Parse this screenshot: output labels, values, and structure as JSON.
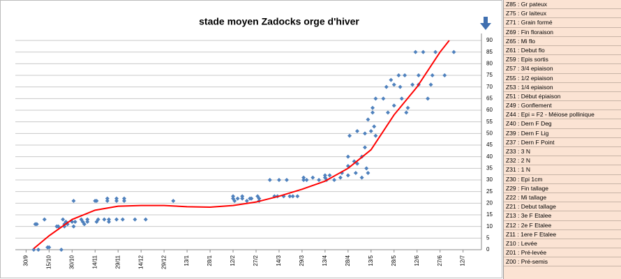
{
  "chart_data": {
    "type": "scatter",
    "title": "stade moyen Zadocks orge d'hiver",
    "x": [
      5,
      8,
      7,
      6,
      12,
      14,
      15,
      20,
      21,
      23,
      24,
      25,
      25,
      26,
      27,
      30,
      31,
      31,
      32,
      36,
      37,
      38,
      40,
      40,
      45,
      46,
      46,
      47,
      51,
      53,
      53,
      54,
      54,
      59,
      59,
      59,
      63,
      64,
      64,
      71,
      78,
      96,
      135,
      135,
      136,
      138,
      141,
      141,
      144,
      146,
      147,
      151,
      152,
      152,
      159,
      162,
      164,
      165,
      168,
      170,
      172,
      174,
      177,
      181,
      181,
      183,
      187,
      191,
      195,
      195,
      196,
      198,
      201,
      205,
      206,
      210,
      210,
      210,
      211,
      214,
      215,
      216,
      216,
      219,
      219,
      221,
      221,
      222,
      223,
      223,
      225,
      226,
      226,
      227,
      228,
      228,
      233,
      235,
      236,
      238,
      240,
      240,
      243,
      244,
      245,
      247,
      248,
      249,
      252,
      254,
      256,
      256,
      259,
      262,
      264,
      265,
      267,
      273,
      279
    ],
    "values": [
      0,
      0,
      11,
      11,
      13,
      1,
      1,
      10,
      10,
      0,
      13,
      11,
      10,
      12,
      11,
      12,
      10,
      21,
      12,
      13,
      12,
      11,
      12,
      13,
      21,
      21,
      12,
      13,
      13,
      21,
      22,
      12,
      13,
      22,
      21,
      13,
      13,
      22,
      21,
      13,
      13,
      21,
      23,
      22,
      21,
      22,
      23,
      22,
      21,
      22,
      22,
      23,
      21,
      22,
      30,
      23,
      23,
      30,
      23,
      30,
      23,
      23,
      23,
      30,
      31,
      30,
      31,
      30,
      31,
      32,
      30,
      32,
      30,
      31,
      33,
      32,
      36,
      40,
      49,
      38,
      33,
      51,
      37,
      40,
      31,
      50,
      44,
      35,
      33,
      56,
      51,
      59,
      61,
      53,
      65,
      49,
      65,
      70,
      59,
      73,
      71,
      62,
      75,
      70,
      65,
      75,
      59,
      61,
      71,
      85,
      75,
      71,
      85,
      65,
      71,
      75,
      85,
      75,
      85
    ],
    "color": "#4f81bd",
    "trend": {
      "type": "line",
      "color": "#ff0000",
      "x": [
        5,
        15,
        30,
        45,
        60,
        75,
        90,
        105,
        120,
        135,
        150,
        165,
        180,
        195,
        210,
        225,
        240,
        255,
        270,
        276
      ],
      "values": [
        0.5,
        6,
        13,
        17,
        18.7,
        19,
        19,
        18.5,
        18.3,
        19,
        20.5,
        23,
        26,
        29.5,
        35,
        43,
        58,
        70,
        85,
        90
      ]
    },
    "xlim": [
      -7,
      297
    ],
    "xticks": [
      {
        "value": 0,
        "label": "30/9"
      },
      {
        "value": 15,
        "label": "15/10"
      },
      {
        "value": 30,
        "label": "30/10"
      },
      {
        "value": 45,
        "label": "14/11"
      },
      {
        "value": 60,
        "label": "29/11"
      },
      {
        "value": 75,
        "label": "14/12"
      },
      {
        "value": 90,
        "label": "29/12"
      },
      {
        "value": 105,
        "label": "13/1"
      },
      {
        "value": 120,
        "label": "28/1"
      },
      {
        "value": 135,
        "label": "12/2"
      },
      {
        "value": 150,
        "label": "27/2"
      },
      {
        "value": 165,
        "label": "14/3"
      },
      {
        "value": 180,
        "label": "29/3"
      },
      {
        "value": 195,
        "label": "13/4"
      },
      {
        "value": 210,
        "label": "28/4"
      },
      {
        "value": 225,
        "label": "13/5"
      },
      {
        "value": 240,
        "label": "28/5"
      },
      {
        "value": 255,
        "label": "12/6"
      },
      {
        "value": 270,
        "label": "27/6"
      },
      {
        "value": 285,
        "label": "12/7"
      }
    ],
    "ylim": [
      0,
      90
    ],
    "yticks": [
      0,
      5,
      10,
      15,
      20,
      25,
      30,
      35,
      40,
      45,
      50,
      55,
      60,
      65,
      70,
      75,
      80,
      85,
      90
    ],
    "grid": true,
    "stages": [
      "Z85 : Gr pateux",
      "Z75 : Gr laiteux",
      "Z71 : Grain formé",
      "Z69 : Fin floraison",
      "Z65 : Mi flo",
      "Z61 : Debut flo",
      "Z59 : Epis sortis",
      "Z57 : 3/4 epiaison",
      "Z55 : 1/2 epiaison",
      "Z53 : 1/4 epiaison",
      "Z51 : Début épiaison",
      "Z49 : Gonflement",
      "Z44 : Epi = F2 - Méiose pollinique",
      "Z40 : Dern F Deg",
      "Z39 : Dern F Lig",
      "Z37 : Dern F Point",
      "Z33 : 3 N",
      "Z32 : 2 N",
      "Z31 : 1 N",
      "Z30 : Epi 1cm",
      "Z29 : Fin tallage",
      "Z22 : Mi tallage",
      "Z21 : Debut tallage",
      "Z13 : 3e F Etalee",
      "Z12 : 2e F Etalee",
      "Z11 : 1ere F Etalee",
      "Z10 : Levée",
      "Z01 : Pré-levée",
      "Z00 : Pré-semis"
    ]
  }
}
